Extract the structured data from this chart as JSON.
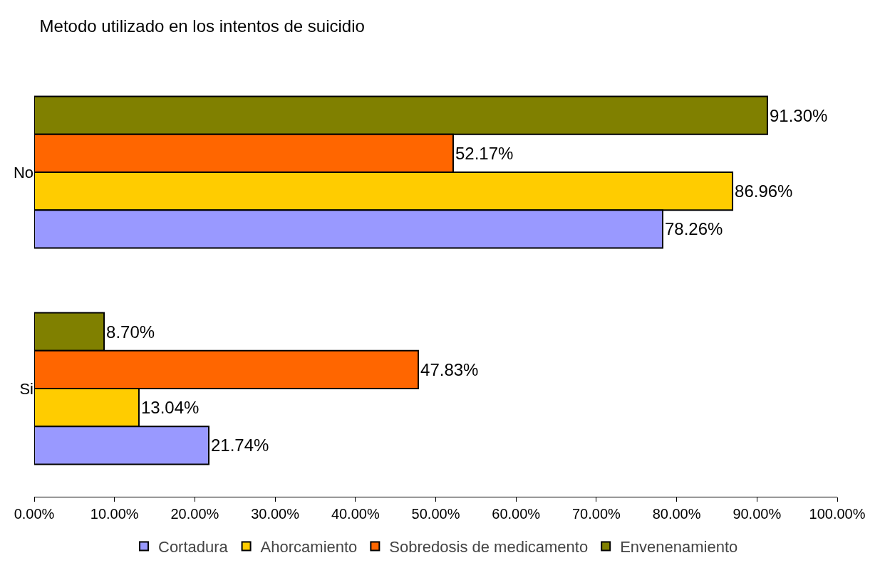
{
  "chart_data": {
    "type": "bar",
    "orientation": "horizontal",
    "title": "Metodo utilizado en los intentos de suicidio",
    "categories": [
      "No",
      "Si"
    ],
    "series": [
      {
        "name": "Cortadura",
        "color": "#9999ff",
        "values": [
          78.26,
          21.74
        ],
        "value_labels": [
          "78.26%",
          "21.74%"
        ]
      },
      {
        "name": "Ahorcamiento",
        "color": "#ffcc00",
        "values": [
          86.96,
          13.04
        ],
        "value_labels": [
          "86.96%",
          "13.04%"
        ]
      },
      {
        "name": "Sobredosis de medicamento",
        "color": "#ff6600",
        "values": [
          52.17,
          47.83
        ],
        "value_labels": [
          "52.17%",
          "47.83%"
        ]
      },
      {
        "name": "Envenenamiento",
        "color": "#808000",
        "values": [
          91.3,
          8.7
        ],
        "value_labels": [
          "91.30%",
          "8.70%"
        ]
      }
    ],
    "xlim": [
      0,
      100
    ],
    "xticks": [
      {
        "value": 0,
        "label": "0.00%"
      },
      {
        "value": 10,
        "label": "10.00%"
      },
      {
        "value": 20,
        "label": "20.00%"
      },
      {
        "value": 30,
        "label": "30.00%"
      },
      {
        "value": 40,
        "label": "40.00%"
      },
      {
        "value": 50,
        "label": "50.00%"
      },
      {
        "value": 60,
        "label": "60.00%"
      },
      {
        "value": 70,
        "label": "70.00%"
      },
      {
        "value": 80,
        "label": "80.00%"
      },
      {
        "value": 90,
        "label": "90.00%"
      },
      {
        "value": 100,
        "label": "100.00%"
      }
    ],
    "grid": false,
    "legend": "bottom"
  }
}
